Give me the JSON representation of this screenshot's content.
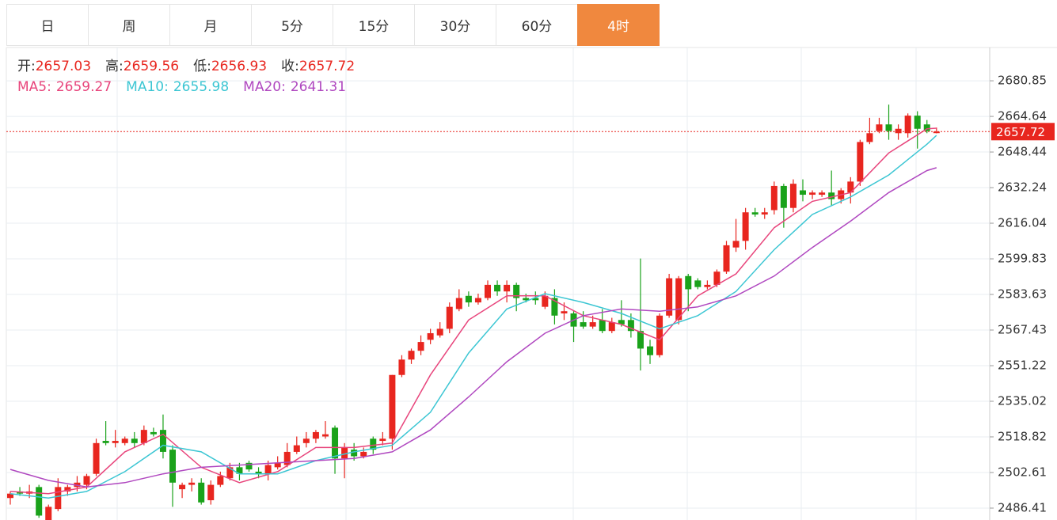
{
  "tabs": [
    "日",
    "周",
    "月",
    "5分",
    "15分",
    "30分",
    "60分",
    "4时"
  ],
  "active_tab": 7,
  "chart_data": {
    "type": "candlestick",
    "ylim": [
      2481,
      2696
    ],
    "yticks": [
      2680.85,
      2664.64,
      2648.44,
      2632.24,
      2616.04,
      2599.83,
      2583.63,
      2567.43,
      2551.22,
      2535.02,
      2518.82,
      2502.61,
      2486.41
    ],
    "ohlc_labels": [
      "开:",
      "高:",
      "低:",
      "收:"
    ],
    "up_color": "#e8261f",
    "down_color": "#1aa21a",
    "label_separator": ":",
    "ohlc": [
      [
        2491,
        2494,
        2488,
        2493
      ],
      [
        2494,
        2496,
        2492,
        2493
      ],
      [
        2493,
        2497,
        2491,
        2494
      ],
      [
        2496,
        2497,
        2482,
        2483
      ],
      [
        2481,
        2488,
        2480,
        2487
      ],
      [
        2486,
        2500,
        2485,
        2496
      ],
      [
        2494,
        2497,
        2492,
        2496
      ],
      [
        2496,
        2501,
        2494,
        2498
      ],
      [
        2497,
        2502,
        2495,
        2501
      ],
      [
        2502,
        2518,
        2501,
        2516
      ],
      [
        2517,
        2526,
        2515,
        2516
      ],
      [
        2516,
        2522,
        2514,
        2517
      ],
      [
        2516,
        2519,
        2515,
        2518
      ],
      [
        2518,
        2521,
        2514,
        2516
      ],
      [
        2516,
        2524,
        2515,
        2522
      ],
      [
        2521,
        2523,
        2519,
        2520
      ],
      [
        2522,
        2529,
        2509,
        2512
      ],
      [
        2513,
        2515,
        2487,
        2498
      ],
      [
        2495,
        2498,
        2491,
        2497
      ],
      [
        2497,
        2500,
        2494,
        2498
      ],
      [
        2498,
        2500,
        2488,
        2489
      ],
      [
        2490,
        2499,
        2488,
        2497
      ],
      [
        2497,
        2503,
        2496,
        2501
      ],
      [
        2500,
        2507,
        2499,
        2505
      ],
      [
        2505,
        2507,
        2499,
        2502
      ],
      [
        2507,
        2508,
        2503,
        2504
      ],
      [
        2503,
        2505,
        2500,
        2502
      ],
      [
        2502,
        2508,
        2499,
        2506
      ],
      [
        2505,
        2510,
        2504,
        2507
      ],
      [
        2506,
        2516,
        2505,
        2512
      ],
      [
        2512,
        2519,
        2511,
        2515
      ],
      [
        2516,
        2521,
        2514,
        2518
      ],
      [
        2518,
        2522,
        2516,
        2521
      ],
      [
        2519,
        2526,
        2518,
        2520
      ],
      [
        2523,
        2524,
        2502,
        2509
      ],
      [
        2509,
        2516,
        2500,
        2514
      ],
      [
        2513,
        2516,
        2508,
        2510
      ],
      [
        2510,
        2514,
        2509,
        2512
      ],
      [
        2518,
        2519,
        2511,
        2513
      ],
      [
        2517,
        2521,
        2515,
        2518
      ],
      [
        2518,
        2547,
        2513,
        2547
      ],
      [
        2547,
        2556,
        2546,
        2554
      ],
      [
        2554,
        2559,
        2552,
        2558
      ],
      [
        2558,
        2565,
        2556,
        2562
      ],
      [
        2563,
        2568,
        2561,
        2566
      ],
      [
        2565,
        2571,
        2564,
        2568
      ],
      [
        2568,
        2580,
        2566,
        2578
      ],
      [
        2577,
        2586,
        2576,
        2582
      ],
      [
        2583,
        2585,
        2578,
        2580
      ],
      [
        2580,
        2584,
        2579,
        2582
      ],
      [
        2582,
        2590,
        2581,
        2588
      ],
      [
        2588,
        2590,
        2583,
        2585
      ],
      [
        2585,
        2590,
        2580,
        2588
      ],
      [
        2588,
        2589,
        2576,
        2582
      ],
      [
        2582,
        2584,
        2580,
        2581
      ],
      [
        2582,
        2585,
        2579,
        2581
      ],
      [
        2578,
        2585,
        2577,
        2583
      ],
      [
        2582,
        2586,
        2570,
        2574
      ],
      [
        2575,
        2580,
        2572,
        2576
      ],
      [
        2575,
        2576,
        2562,
        2569
      ],
      [
        2571,
        2576,
        2568,
        2569
      ],
      [
        2569,
        2574,
        2568,
        2571
      ],
      [
        2572,
        2577,
        2566,
        2567
      ],
      [
        2567,
        2573,
        2566,
        2571
      ],
      [
        2572,
        2581,
        2569,
        2570
      ],
      [
        2572,
        2575,
        2564,
        2567
      ],
      [
        2567,
        2600,
        2549,
        2559
      ],
      [
        2560,
        2563,
        2552,
        2556
      ],
      [
        2556,
        2575,
        2555,
        2574
      ],
      [
        2574,
        2593,
        2573,
        2591
      ],
      [
        2572,
        2592,
        2570,
        2591
      ],
      [
        2592,
        2593,
        2576,
        2586
      ],
      [
        2590,
        2591,
        2586,
        2587
      ],
      [
        2587,
        2590,
        2586,
        2588
      ],
      [
        2588,
        2595,
        2587,
        2594
      ],
      [
        2594,
        2608,
        2593,
        2606
      ],
      [
        2605,
        2618,
        2603,
        2608
      ],
      [
        2608,
        2623,
        2604,
        2621
      ],
      [
        2621,
        2623,
        2619,
        2620
      ],
      [
        2620,
        2623,
        2618,
        2621
      ],
      [
        2622,
        2635,
        2620,
        2633
      ],
      [
        2633,
        2634,
        2614,
        2623
      ],
      [
        2623,
        2636,
        2621,
        2634
      ],
      [
        2631,
        2636,
        2626,
        2629
      ],
      [
        2629,
        2631,
        2627,
        2630
      ],
      [
        2629,
        2631,
        2628,
        2630
      ],
      [
        2630,
        2640,
        2624,
        2627
      ],
      [
        2627,
        2632,
        2625,
        2631
      ],
      [
        2630,
        2637,
        2625,
        2635
      ],
      [
        2635,
        2654,
        2633,
        2653
      ],
      [
        2653,
        2664,
        2652,
        2657
      ],
      [
        2658,
        2664,
        2657,
        2661
      ],
      [
        2661,
        2670,
        2654,
        2658
      ],
      [
        2657,
        2661,
        2654,
        2659
      ],
      [
        2657,
        2666,
        2655,
        2665
      ],
      [
        2665,
        2667,
        2650,
        2659
      ],
      [
        2661,
        2663,
        2657,
        2658
      ],
      [
        2657.03,
        2659.56,
        2656.93,
        2657.72
      ]
    ],
    "series": [
      {
        "name": "MA5",
        "color": "#e8457c",
        "x": [
          0,
          4,
          8,
          12,
          16,
          20,
          24,
          28,
          32,
          36,
          40,
          44,
          48,
          52,
          56,
          60,
          64,
          68,
          72,
          76,
          80,
          84,
          88,
          92,
          96,
          97
        ],
        "values": [
          2494,
          2493,
          2496,
          2512,
          2520,
          2505,
          2498,
          2503,
          2514,
          2514,
          2516,
          2547,
          2572,
          2583,
          2583,
          2574,
          2570,
          2563,
          2583,
          2593,
          2614,
          2626,
          2630,
          2648,
          2659,
          2659.27
        ]
      },
      {
        "name": "MA10",
        "color": "#3cc6d3",
        "x": [
          0,
          4,
          8,
          12,
          16,
          20,
          24,
          28,
          32,
          36,
          40,
          44,
          48,
          52,
          56,
          60,
          64,
          68,
          72,
          76,
          80,
          84,
          88,
          92,
          96,
          97
        ],
        "values": [
          2493,
          2491,
          2494,
          2503,
          2515,
          2512,
          2502,
          2502,
          2508,
          2512,
          2515,
          2530,
          2557,
          2577,
          2584,
          2580,
          2575,
          2568,
          2574,
          2585,
          2604,
          2620,
          2628,
          2638,
          2652,
          2655.98
        ]
      },
      {
        "name": "MA20",
        "color": "#b048c0",
        "x": [
          0,
          4,
          8,
          12,
          16,
          20,
          24,
          28,
          32,
          36,
          40,
          44,
          48,
          52,
          56,
          60,
          64,
          68,
          72,
          76,
          80,
          84,
          88,
          92,
          96,
          97
        ],
        "values": [
          2504,
          2499,
          2496,
          2498,
          2502,
          2505,
          2506,
          2507,
          2508,
          2509,
          2512,
          2522,
          2537,
          2553,
          2566,
          2574,
          2577,
          2576,
          2578,
          2583,
          2592,
          2605,
          2617,
          2630,
          2640,
          2641.31
        ]
      }
    ]
  }
}
